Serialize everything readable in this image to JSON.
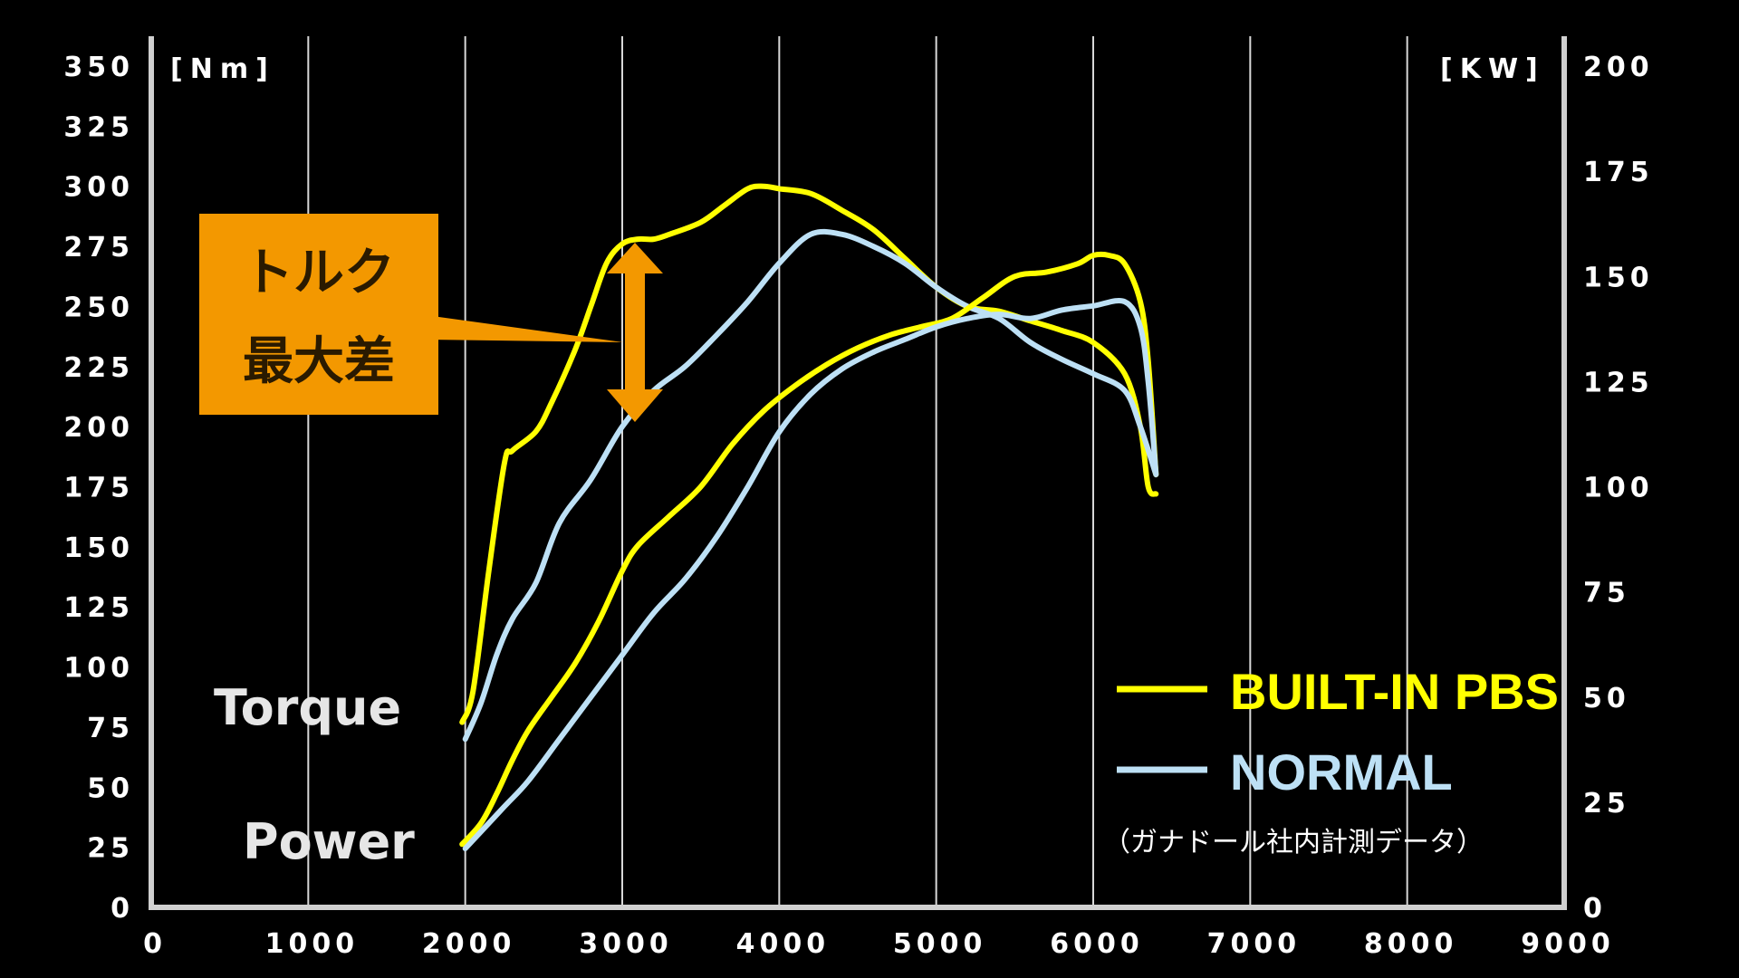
{
  "chart_data": {
    "type": "line",
    "x_axis": {
      "ticks": [
        "0",
        "1000",
        "2000",
        "3000",
        "4000",
        "5000",
        "6000",
        "7000",
        "8000",
        "9000"
      ],
      "range": [
        0,
        9000
      ]
    },
    "y_left": {
      "unit": "[Nm]",
      "ticks": [
        "0",
        "25",
        "50",
        "75",
        "100",
        "125",
        "150",
        "175",
        "200",
        "225",
        "250",
        "275",
        "300",
        "325",
        "350"
      ],
      "range": [
        0,
        350
      ]
    },
    "y_right": {
      "unit": "[KW]",
      "ticks": [
        "0",
        "25",
        "50",
        "75",
        "100",
        "125",
        "150",
        "175",
        "200"
      ],
      "range": [
        0,
        200
      ]
    },
    "grid": true,
    "side_labels": {
      "torque": "Torque",
      "power": "Power"
    },
    "legend": {
      "placement": "bottom-right",
      "entries": [
        {
          "label": "BUILT-IN PBS",
          "color": "#ffff00"
        },
        {
          "label": "NORMAL",
          "color": "#bde0f5"
        }
      ]
    },
    "note": "（ガナドール社内計測データ）",
    "callout": {
      "line1": "トルク",
      "line2": "最大差",
      "color": "#f39800"
    },
    "series": [
      {
        "name": "BUILT-IN PBS",
        "metric": "torque",
        "axis": "left",
        "color": "#ffff00",
        "x": [
          1980,
          2050,
          2150,
          2250,
          2300,
          2450,
          2550,
          2700,
          2800,
          2900,
          3000,
          3100,
          3200,
          3300,
          3500,
          3650,
          3800,
          3900,
          4000,
          4200,
          4400,
          4600,
          4800,
          5000,
          5200,
          5400,
          5600,
          5800,
          6000,
          6200,
          6300,
          6350,
          6400
        ],
        "y": [
          77,
          90,
          140,
          185,
          190,
          198,
          210,
          232,
          250,
          268,
          276,
          278,
          278,
          280,
          285,
          292,
          299,
          300,
          299,
          297,
          290,
          282,
          270,
          258,
          250,
          248,
          244,
          240,
          235,
          222,
          200,
          175,
          172
        ]
      },
      {
        "name": "NORMAL",
        "metric": "torque",
        "axis": "left",
        "color": "#bde0f5",
        "x": [
          2000,
          2100,
          2200,
          2300,
          2450,
          2600,
          2800,
          3000,
          3200,
          3400,
          3600,
          3800,
          4000,
          4200,
          4400,
          4600,
          4800,
          5000,
          5200,
          5400,
          5600,
          5800,
          6000,
          6200,
          6300,
          6400
        ],
        "y": [
          70,
          85,
          105,
          120,
          135,
          160,
          178,
          200,
          215,
          225,
          238,
          252,
          268,
          280,
          280,
          275,
          268,
          258,
          250,
          245,
          235,
          228,
          222,
          215,
          200,
          180
        ]
      },
      {
        "name": "BUILT-IN PBS",
        "metric": "power",
        "axis": "right",
        "color": "#ffff00",
        "x": [
          1980,
          2100,
          2200,
          2300,
          2400,
          2550,
          2700,
          2850,
          3000,
          3100,
          3300,
          3500,
          3700,
          3900,
          4100,
          4300,
          4500,
          4700,
          4900,
          5100,
          5300,
          5500,
          5700,
          5900,
          6000,
          6100,
          6200,
          6300,
          6350,
          6400
        ],
        "y": [
          15,
          20,
          27,
          35,
          42,
          50,
          58,
          68,
          80,
          86,
          93,
          100,
          110,
          118,
          124,
          129,
          133,
          136,
          138,
          140,
          145,
          150,
          151,
          153,
          155,
          155,
          153,
          144,
          130,
          103
        ]
      },
      {
        "name": "NORMAL",
        "metric": "power",
        "axis": "right",
        "color": "#bde0f5",
        "x": [
          2000,
          2100,
          2250,
          2400,
          2600,
          2800,
          3000,
          3200,
          3400,
          3600,
          3800,
          4000,
          4200,
          4400,
          4600,
          4800,
          5000,
          5200,
          5400,
          5600,
          5800,
          6000,
          6200,
          6300,
          6350,
          6400
        ],
        "y": [
          14,
          18,
          24,
          30,
          40,
          50,
          60,
          70,
          78,
          88,
          100,
          113,
          122,
          128,
          132,
          135,
          138,
          140,
          141,
          140,
          142,
          143,
          144,
          138,
          125,
          103
        ]
      }
    ]
  }
}
